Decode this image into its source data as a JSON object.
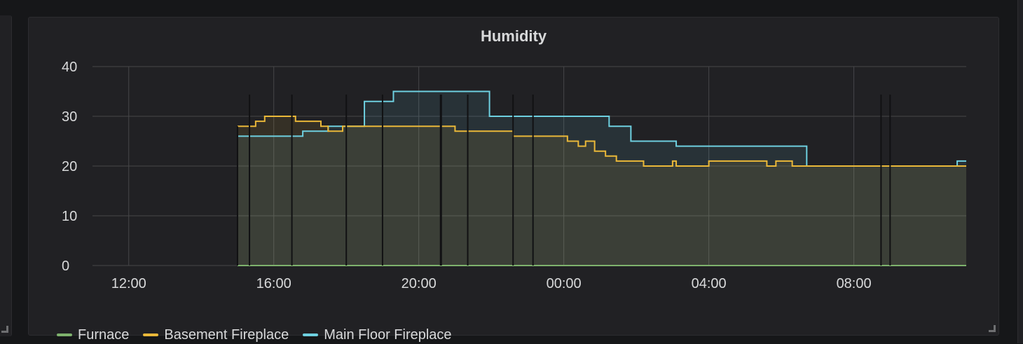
{
  "panel": {
    "title": "Humidity"
  },
  "colors": {
    "background": "#161719",
    "panel": "#212124",
    "grid": "#464649",
    "text": "#d8d9da"
  },
  "chart_data": {
    "type": "line",
    "title": "Humidity",
    "xlabel": "",
    "ylabel": "",
    "ylim": [
      0,
      40
    ],
    "xlim_hours": [
      11,
      35.1
    ],
    "x_unit": "hours since 00:00 of day 1 (24 = next-day 00:00)",
    "yticks": [
      "0",
      "10",
      "20",
      "30",
      "40"
    ],
    "xticks": [
      {
        "label": "12:00",
        "hour": 12
      },
      {
        "label": "16:00",
        "hour": 16
      },
      {
        "label": "20:00",
        "hour": 20
      },
      {
        "label": "00:00",
        "hour": 24
      },
      {
        "label": "04:00",
        "hour": 28
      },
      {
        "label": "08:00",
        "hour": 32
      }
    ],
    "grid": true,
    "legend_position": "bottom-left",
    "gap_markers_hours": [
      15.33,
      16.5,
      18.0,
      19.0,
      20.6,
      20.62,
      21.35,
      22.6,
      23.15,
      32.75,
      33.0
    ],
    "series": [
      {
        "name": "Furnace",
        "color": "#7eb26d",
        "fill": false,
        "points": [
          [
            15.0,
            0
          ],
          [
            35.1,
            0
          ]
        ]
      },
      {
        "name": "Basement Fireplace",
        "color": "#eab839",
        "fill": true,
        "points": [
          [
            15.0,
            28
          ],
          [
            15.5,
            28
          ],
          [
            15.5,
            29
          ],
          [
            15.75,
            29
          ],
          [
            15.75,
            30
          ],
          [
            16.6,
            30
          ],
          [
            16.6,
            29
          ],
          [
            17.3,
            29
          ],
          [
            17.3,
            28
          ],
          [
            17.5,
            28
          ],
          [
            17.5,
            27
          ],
          [
            17.9,
            27
          ],
          [
            17.9,
            28
          ],
          [
            21.0,
            28
          ],
          [
            21.0,
            27
          ],
          [
            22.6,
            27
          ],
          [
            22.6,
            26
          ],
          [
            24.1,
            26
          ],
          [
            24.1,
            25
          ],
          [
            24.4,
            25
          ],
          [
            24.4,
            24
          ],
          [
            24.6,
            24
          ],
          [
            24.6,
            25
          ],
          [
            24.85,
            25
          ],
          [
            24.85,
            23
          ],
          [
            25.15,
            23
          ],
          [
            25.15,
            22
          ],
          [
            25.45,
            22
          ],
          [
            25.45,
            21
          ],
          [
            26.2,
            21
          ],
          [
            26.2,
            20
          ],
          [
            27.0,
            20
          ],
          [
            27.0,
            21
          ],
          [
            27.1,
            21
          ],
          [
            27.1,
            20
          ],
          [
            28.0,
            20
          ],
          [
            28.0,
            21
          ],
          [
            29.6,
            21
          ],
          [
            29.6,
            20
          ],
          [
            29.85,
            20
          ],
          [
            29.85,
            21
          ],
          [
            30.3,
            21
          ],
          [
            30.3,
            20
          ],
          [
            35.1,
            20
          ]
        ]
      },
      {
        "name": "Main Floor Fireplace",
        "color": "#6ed0e0",
        "fill": true,
        "points": [
          [
            15.0,
            26
          ],
          [
            16.8,
            26
          ],
          [
            16.8,
            27
          ],
          [
            17.5,
            27
          ],
          [
            17.5,
            28
          ],
          [
            18.5,
            28
          ],
          [
            18.5,
            33
          ],
          [
            19.3,
            33
          ],
          [
            19.3,
            35
          ],
          [
            21.95,
            35
          ],
          [
            21.95,
            30
          ],
          [
            25.25,
            30
          ],
          [
            25.25,
            28
          ],
          [
            25.85,
            28
          ],
          [
            25.85,
            25
          ],
          [
            27.1,
            25
          ],
          [
            27.1,
            24
          ],
          [
            30.7,
            24
          ],
          [
            30.7,
            20
          ],
          [
            34.85,
            20
          ],
          [
            34.85,
            21
          ],
          [
            35.1,
            21
          ]
        ]
      }
    ]
  }
}
